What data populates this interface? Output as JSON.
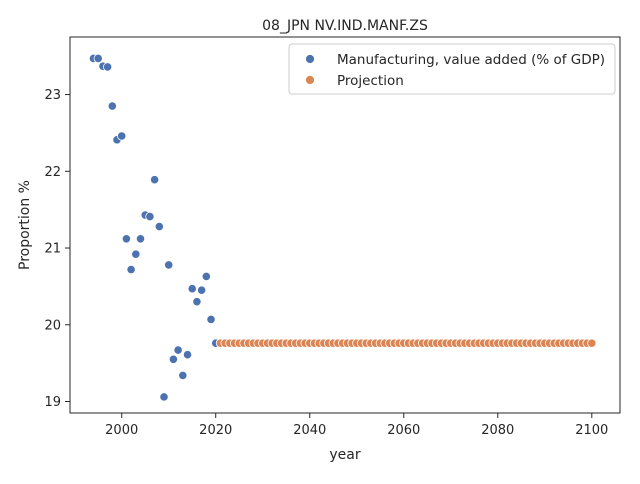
{
  "chart_data": {
    "type": "scatter",
    "title": "08_JPN NV.IND.MANF.ZS",
    "xlabel": "year",
    "ylabel": "Proportion %",
    "xlim": [
      1989,
      2106
    ],
    "ylim": [
      18.85,
      23.75
    ],
    "xticks": [
      2000,
      2020,
      2040,
      2060,
      2080,
      2100
    ],
    "yticks": [
      19,
      20,
      21,
      22,
      23
    ],
    "grid": false,
    "legend_position": "top-right",
    "series": [
      {
        "name": "Manufacturing, value added (% of GDP)",
        "color": "#4c72b0",
        "points": [
          [
            1994,
            23.47
          ],
          [
            1995,
            23.47
          ],
          [
            1996,
            23.37
          ],
          [
            1997,
            23.36
          ],
          [
            1998,
            22.85
          ],
          [
            1999,
            22.41
          ],
          [
            2000,
            22.46
          ],
          [
            2001,
            21.12
          ],
          [
            2002,
            20.72
          ],
          [
            2003,
            20.92
          ],
          [
            2004,
            21.12
          ],
          [
            2005,
            21.43
          ],
          [
            2006,
            21.41
          ],
          [
            2007,
            21.89
          ],
          [
            2008,
            21.28
          ],
          [
            2009,
            19.06
          ],
          [
            2010,
            20.78
          ],
          [
            2011,
            19.55
          ],
          [
            2012,
            19.67
          ],
          [
            2013,
            19.34
          ],
          [
            2014,
            19.61
          ],
          [
            2015,
            20.47
          ],
          [
            2016,
            20.3
          ],
          [
            2017,
            20.45
          ],
          [
            2018,
            20.63
          ],
          [
            2019,
            20.07
          ],
          [
            2020,
            19.76
          ]
        ]
      },
      {
        "name": "Projection",
        "color": "#dd8452",
        "x_start": 2021,
        "x_end": 2100,
        "constant_value": 19.76
      }
    ]
  }
}
